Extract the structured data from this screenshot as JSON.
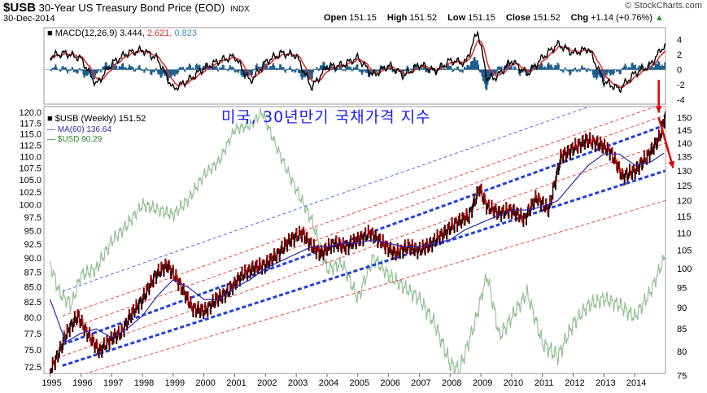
{
  "header": {
    "symbol": "$USB",
    "name": "30-Year US Treasury Bond Price (EOD)",
    "exchange": "INDX",
    "date": "30-Dec-2014",
    "open_label": "Open",
    "open": "151.15",
    "high_label": "High",
    "high": "151.52",
    "low_label": "Low",
    "low": "151.15",
    "close_label": "Close",
    "close": "151.52",
    "chg_label": "Chg",
    "chg": "+1.14 (+0.76%)",
    "chg_arrow": "▲",
    "brand": "© StockCharts.com"
  },
  "annotation": "미국, 30년만기 국채가격 지수",
  "chart_data": [
    {
      "type": "line",
      "panel": "macd",
      "legend": {
        "label": "MACD(12,26,9)",
        "macd": "3.444",
        "signal": "2.621",
        "hist": "0.823"
      },
      "yticks": [
        -4,
        -2,
        0,
        2,
        4
      ],
      "ylim": [
        -4.6,
        5.6
      ],
      "colors": {
        "macd": "#000000",
        "signal": "#e03030",
        "hist": "#1f5f8f"
      },
      "series": [
        {
          "x": [
            1995.0,
            1995.5,
            1996.0,
            1996.5,
            1997.0,
            1997.5,
            1998.0,
            1998.5,
            1999.0,
            1999.5,
            2000.0,
            2000.5,
            2001.0,
            2001.5,
            2002.0,
            2002.5,
            2003.0,
            2003.5,
            2004.0,
            2004.5,
            2005.0,
            2005.5,
            2006.0,
            2006.5,
            2007.0,
            2007.5,
            2008.0,
            2008.5,
            2008.9,
            2009.2,
            2009.5,
            2010.0,
            2010.5,
            2011.0,
            2011.5,
            2012.0,
            2012.5,
            2013.0,
            2013.5,
            2014.0,
            2014.5,
            2014.99
          ],
          "values": [
            1.8,
            2.2,
            1.5,
            -2.0,
            0.8,
            2.2,
            2.6,
            1.4,
            -2.6,
            -1.4,
            0.2,
            1.2,
            1.8,
            -1.6,
            1.0,
            2.2,
            1.9,
            -2.4,
            0.4,
            0.6,
            1.6,
            -0.8,
            0.6,
            -0.8,
            0.7,
            -0.2,
            1.2,
            0.9,
            5.2,
            -1.2,
            -1.0,
            1.2,
            -0.6,
            1.6,
            3.4,
            2.2,
            2.8,
            -1.6,
            -2.6,
            -0.5,
            0.6,
            3.4
          ]
        }
      ]
    },
    {
      "type": "line",
      "panel": "price",
      "title": "$USB (Weekly) 151.52",
      "xlabel": "",
      "ylabel": "",
      "x_ticks": [
        "1995",
        "1996",
        "1997",
        "1998",
        "1999",
        "2000",
        "2001",
        "2002",
        "2003",
        "2004",
        "2005",
        "2006",
        "2007",
        "2008",
        "2009",
        "2010",
        "2011",
        "2012",
        "2013",
        "2014"
      ],
      "xlim": [
        1994.8,
        2015.0
      ],
      "y_left_ticks": [
        72.5,
        75.0,
        77.5,
        80.0,
        82.5,
        85.0,
        87.5,
        90.0,
        92.5,
        95.0,
        97.5,
        100.0,
        102.5,
        105.0,
        107.5,
        110.0,
        112.5,
        115.0,
        117.5,
        120.0
      ],
      "y_left_lim": [
        71.6,
        121.4
      ],
      "y_right_ticks": [
        75,
        80,
        85,
        90,
        95,
        100,
        105,
        110,
        115,
        120,
        125,
        130,
        135,
        140,
        145,
        150
      ],
      "y_right_lim": [
        75.4,
        154.5
      ],
      "log_scale": true,
      "grid": false,
      "legend_position": "top-left",
      "series": [
        {
          "name": "$USB (Weekly) 151.52",
          "color": "#000000",
          "axis": "right",
          "x": [
            1995.0,
            1995.3,
            1995.6,
            1995.9,
            1996.2,
            1996.6,
            1997.0,
            1997.3,
            1997.6,
            1998.0,
            1998.4,
            1998.8,
            1999.2,
            1999.6,
            2000.0,
            2000.4,
            2000.8,
            2001.2,
            2001.6,
            2002.0,
            2002.4,
            2002.8,
            2003.2,
            2003.5,
            2003.8,
            2004.2,
            2004.6,
            2005.0,
            2005.4,
            2005.8,
            2006.2,
            2006.6,
            2007.0,
            2007.4,
            2007.8,
            2008.2,
            2008.6,
            2008.95,
            2009.2,
            2009.6,
            2010.0,
            2010.4,
            2010.8,
            2011.2,
            2011.6,
            2012.0,
            2012.4,
            2012.8,
            2013.2,
            2013.6,
            2014.0,
            2014.4,
            2014.8,
            2014.99
          ],
          "values": [
            76,
            80,
            85,
            88,
            84,
            80,
            83,
            84,
            88,
            92,
            98,
            101,
            96,
            90,
            89,
            92,
            94,
            98,
            100,
            101,
            104,
            108,
            110,
            106,
            104,
            107,
            106,
            108,
            110,
            107,
            104,
            106,
            105,
            107,
            110,
            113,
            115,
            124,
            118,
            116,
            117,
            114,
            121,
            117,
            135,
            138,
            141,
            140,
            137,
            128,
            130,
            135,
            142,
            151.5
          ]
        },
        {
          "name": "MA(60) 136.64",
          "color": "#2b2bb0",
          "axis": "right",
          "x": [
            1995.0,
            1995.5,
            1996.0,
            1996.5,
            1997.0,
            1997.5,
            1998.0,
            1998.5,
            1999.0,
            1999.5,
            2000.0,
            2000.5,
            2001.0,
            2001.5,
            2002.0,
            2002.5,
            2003.0,
            2003.5,
            2004.0,
            2004.5,
            2005.0,
            2005.5,
            2006.0,
            2006.5,
            2007.0,
            2007.5,
            2008.0,
            2008.5,
            2009.0,
            2009.5,
            2010.0,
            2010.5,
            2011.0,
            2011.5,
            2012.0,
            2012.5,
            2013.0,
            2013.5,
            2014.0,
            2014.5,
            2014.99
          ],
          "values": [
            92,
            82,
            84,
            85,
            83,
            85,
            88,
            93,
            97,
            95,
            92,
            92,
            95,
            97,
            100,
            102,
            104,
            106,
            106,
            107,
            107,
            108,
            107,
            106,
            106,
            107,
            108,
            111,
            113,
            115,
            117,
            117,
            118,
            120,
            126,
            132,
            136,
            136,
            132,
            133,
            136.6
          ]
        },
        {
          "name": "$USD 90.29",
          "color": "#8fbf8f",
          "axis": "left",
          "x": [
            1995.0,
            1995.3,
            1995.7,
            1996.0,
            1996.5,
            1997.0,
            1997.5,
            1998.0,
            1998.5,
            1999.0,
            1999.5,
            2000.0,
            2000.5,
            2001.0,
            2001.5,
            2001.9,
            2002.3,
            2002.7,
            2003.0,
            2003.5,
            2004.0,
            2004.5,
            2005.0,
            2005.5,
            2006.0,
            2006.5,
            2007.0,
            2007.5,
            2008.0,
            2008.3,
            2008.8,
            2009.2,
            2009.6,
            2010.0,
            2010.5,
            2011.0,
            2011.5,
            2012.0,
            2012.5,
            2013.0,
            2013.5,
            2014.0,
            2014.5,
            2014.99
          ],
          "values": [
            89,
            84,
            82,
            87,
            88,
            93,
            96,
            100,
            99,
            98,
            101,
            106,
            109,
            116,
            117,
            120,
            113,
            107,
            103,
            97,
            88,
            89,
            83,
            90,
            87,
            85,
            83,
            79,
            73,
            72,
            79,
            87,
            77,
            80,
            84,
            76,
            74,
            79,
            82,
            83,
            82,
            80,
            84,
            90.29
          ]
        }
      ],
      "channel_lines": {
        "blue_bold": [
          {
            "start": [
              1995.4,
              81.5
            ],
            "end": [
              2014.99,
              147.0
            ]
          },
          {
            "start": [
              1995.4,
              77.0
            ],
            "end": [
              2014.99,
              130.0
            ]
          }
        ],
        "blue_thin": [
          {
            "start": [
              1995.4,
              94.0
            ],
            "end": [
              2014.99,
              166.0
            ]
          }
        ],
        "red_dashed": [
          {
            "start": [
              1995.4,
              88.0
            ],
            "end": [
              2014.99,
              156.0
            ]
          },
          {
            "start": [
              1995.4,
              84.5
            ],
            "end": [
              2014.99,
              151.0
            ]
          },
          {
            "start": [
              1995.4,
              79.0
            ],
            "end": [
              2014.99,
              140.0
            ]
          },
          {
            "start": [
              1995.4,
              74.0
            ],
            "end": [
              2014.99,
              120.0
            ]
          }
        ]
      },
      "arrows": [
        {
          "from": [
            2014.78,
            166.0
          ],
          "to": [
            2014.78,
            152.0
          ],
          "color": "#e00000"
        },
        {
          "from": [
            2014.78,
            150.0
          ],
          "to": [
            2015.25,
            131.0
          ],
          "color": "#e00000"
        }
      ]
    }
  ]
}
